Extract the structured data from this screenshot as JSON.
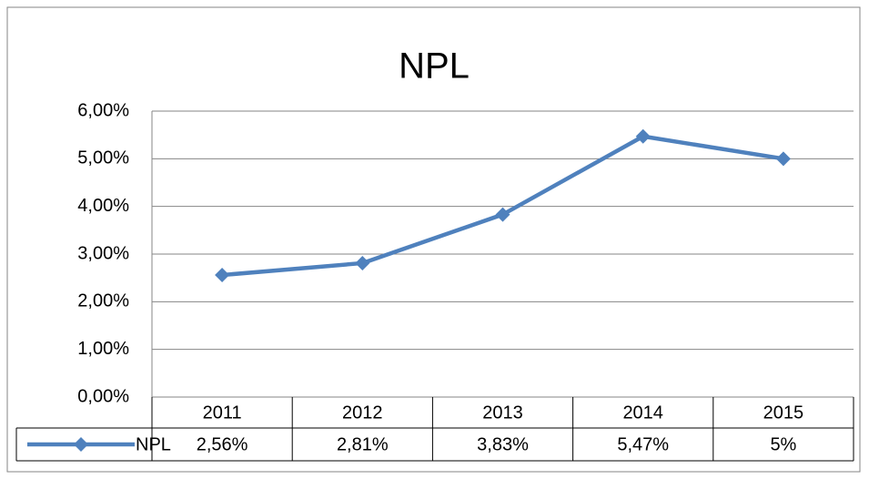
{
  "chart_data": {
    "type": "line",
    "title": "NPL",
    "categories": [
      "2011",
      "2012",
      "2013",
      "2014",
      "2015"
    ],
    "series": [
      {
        "name": "NPL",
        "color": "#4f81bd",
        "values": [
          2.56,
          2.81,
          3.83,
          5.47,
          5
        ],
        "value_labels": [
          "2,56%",
          "2,81%",
          "3,83%",
          "5,47%",
          "5%"
        ]
      }
    ],
    "ylim": [
      0,
      6
    ],
    "yticks": [
      {
        "value": 0,
        "label": "0,00%"
      },
      {
        "value": 1,
        "label": "1,00%"
      },
      {
        "value": 2,
        "label": "2,00%"
      },
      {
        "value": 3,
        "label": "3,00%"
      },
      {
        "value": 4,
        "label": "4,00%"
      },
      {
        "value": 5,
        "label": "5,00%"
      },
      {
        "value": 6,
        "label": "6,00%"
      }
    ],
    "grid": true,
    "data_table": true
  }
}
